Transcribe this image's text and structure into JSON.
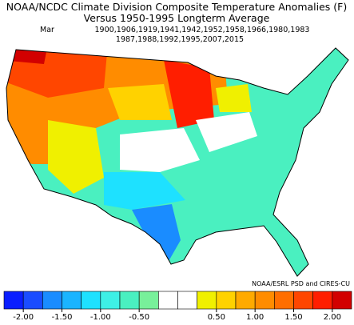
{
  "header": {
    "title": "NOAA/NCDC Climate Division Composite Temperature Anomalies (F)",
    "subtitle": "Versus 1950-1995 Longterm Average",
    "month": "Mar",
    "years_line1": "1900,1906,1919,1941,1942,1952,1958,1966,1980,1983",
    "years_line2": "1987,1988,1992,1995,2007,2015"
  },
  "credit": "NOAA/ESRL PSD and CIRES-CU",
  "legend": {
    "lim": [
      -2.25,
      2.25
    ],
    "colors": [
      "#0a1eff",
      "#1a4cff",
      "#1a8cff",
      "#1ab4ff",
      "#1ee1ff",
      "#3ef0e6",
      "#4af0c0",
      "#78f09a",
      "#ffffff",
      "#ffffff",
      "#f0f000",
      "#ffd200",
      "#ffaa00",
      "#ff8c00",
      "#ff6e00",
      "#ff4600",
      "#ff1e00",
      "#d20000"
    ],
    "ticks": [
      {
        "value": -2,
        "label": "-2.00"
      },
      {
        "value": -1.5,
        "label": "-1.50"
      },
      {
        "value": -1,
        "label": "-1.00"
      },
      {
        "value": -0.5,
        "label": "-0.50"
      },
      {
        "value": 0.5,
        "label": "0.50"
      },
      {
        "value": 1,
        "label": "1.00"
      },
      {
        "value": 1.5,
        "label": "1.50"
      },
      {
        "value": 2,
        "label": "2.00"
      }
    ]
  }
}
